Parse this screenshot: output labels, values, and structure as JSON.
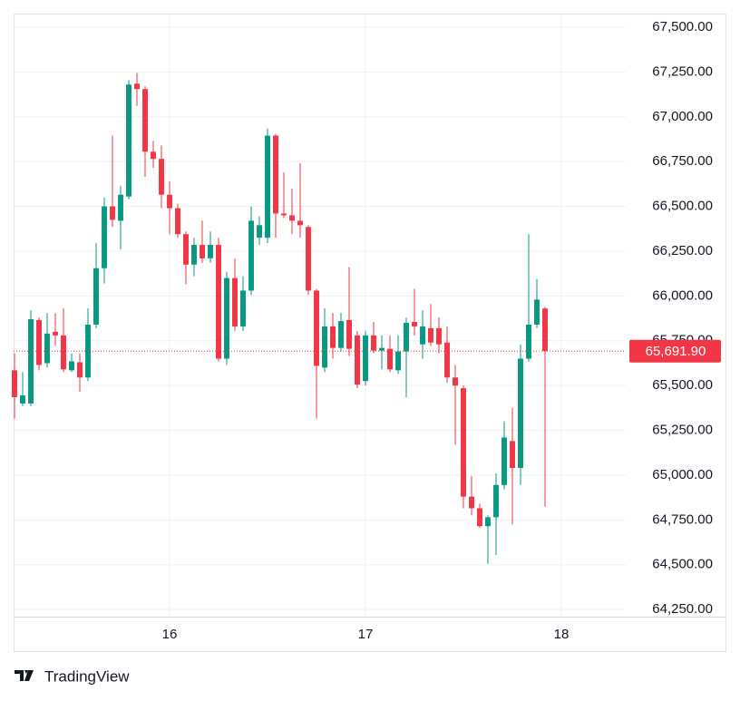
{
  "chart_data": {
    "type": "candlestick",
    "x": [
      15.2083,
      15.25,
      15.2917,
      15.3333,
      15.375,
      15.4167,
      15.4583,
      15.5,
      15.5417,
      15.5833,
      15.625,
      15.6667,
      15.7083,
      15.75,
      15.7917,
      15.8333,
      15.875,
      15.9167,
      15.9583,
      16,
      16.0417,
      16.0833,
      16.125,
      16.1667,
      16.2083,
      16.25,
      16.2917,
      16.3333,
      16.375,
      16.4167,
      16.4583,
      16.5,
      16.5417,
      16.5833,
      16.625,
      16.6667,
      16.7083,
      16.75,
      16.7917,
      16.8333,
      16.875,
      16.9167,
      16.9583,
      17,
      17.0417,
      17.0833,
      17.125,
      17.1667,
      17.2083,
      17.25,
      17.2917,
      17.3333,
      17.375,
      17.4167,
      17.4583,
      17.5,
      17.5417,
      17.5833,
      17.625,
      17.6667,
      17.7083,
      17.75,
      17.7917,
      17.8333,
      17.875,
      17.9167
    ],
    "open": [
      65585,
      65400,
      65400,
      65865,
      65625,
      65800,
      65780,
      65585,
      65630,
      65545,
      65840,
      66155,
      66500,
      66420,
      66555,
      67185,
      67155,
      66805,
      66765,
      66565,
      66490,
      66345,
      66175,
      66285,
      66210,
      66285,
      65650,
      66100,
      65830,
      66030,
      66325,
      66325,
      66895,
      66460,
      66450,
      66420,
      66385,
      66030,
      65600,
      65830,
      65710,
      65865,
      65780,
      65525,
      65780,
      65695,
      65705,
      65585,
      65690,
      65855,
      65730,
      65820,
      65820,
      65740,
      65545,
      65485,
      64880,
      64815,
      64715,
      64765,
      64945,
      65190,
      65040,
      65650,
      65840,
      65930
    ],
    "high": [
      65680,
      65575,
      65920,
      65880,
      65905,
      65905,
      65930,
      65680,
      65680,
      65930,
      66295,
      66550,
      66895,
      66615,
      67205,
      67245,
      67170,
      66865,
      66840,
      66640,
      66515,
      66360,
      66325,
      66420,
      66360,
      66325,
      66135,
      66210,
      66110,
      66500,
      66445,
      66935,
      66905,
      66690,
      66600,
      66740,
      66395,
      66040,
      65930,
      65905,
      65905,
      66160,
      65805,
      65805,
      65855,
      65780,
      65780,
      65780,
      65880,
      66040,
      65920,
      65955,
      65880,
      65830,
      65615,
      65500,
      64995,
      64840,
      64775,
      65010,
      65300,
      65375,
      65730,
      66345,
      66095,
      65940
    ],
    "low": [
      65315,
      65385,
      65385,
      65585,
      65600,
      65720,
      65575,
      65575,
      65465,
      65525,
      65820,
      66070,
      66385,
      66260,
      66540,
      67060,
      66665,
      66715,
      66490,
      66345,
      66325,
      66065,
      66110,
      66185,
      66185,
      65635,
      65615,
      65805,
      65805,
      66005,
      66285,
      66295,
      66325,
      66435,
      66345,
      66325,
      66005,
      65315,
      65575,
      65650,
      65690,
      65665,
      65485,
      65500,
      65680,
      65590,
      65575,
      65565,
      65435,
      65780,
      65650,
      65720,
      65680,
      65515,
      65170,
      64815,
      64775,
      64705,
      64505,
      64555,
      64920,
      64725,
      64945,
      65635,
      65820,
      64825
    ],
    "close": [
      65435,
      65445,
      65870,
      65615,
      65790,
      65780,
      65590,
      65635,
      65545,
      65840,
      66155,
      66500,
      66425,
      66565,
      67180,
      67155,
      66805,
      66765,
      66565,
      66490,
      66345,
      66175,
      66285,
      66210,
      66285,
      65650,
      66100,
      65830,
      66030,
      66420,
      66395,
      66895,
      66460,
      66450,
      66420,
      66395,
      66030,
      65610,
      65830,
      65710,
      65860,
      65705,
      65505,
      65780,
      65695,
      65710,
      65590,
      65690,
      65850,
      65830,
      65830,
      65740,
      65730,
      65545,
      65500,
      64880,
      64815,
      64715,
      64765,
      64945,
      65210,
      65040,
      65650,
      65840,
      65980,
      65691.9
    ],
    "up_color": "#089981",
    "down_color": "#f23645",
    "xlim": [
      15.2037,
      18.3287
    ],
    "xticks": [
      16,
      17,
      18
    ],
    "ylim": [
      64210,
      67576
    ],
    "yticks": [
      {
        "value": 64250,
        "label": "64,250.00"
      },
      {
        "value": 64500,
        "label": "64,500.00"
      },
      {
        "value": 64750,
        "label": "64,750.00"
      },
      {
        "value": 65000,
        "label": "65,000.00"
      },
      {
        "value": 65250,
        "label": "65,250.00"
      },
      {
        "value": 65500,
        "label": "65,500.00"
      },
      {
        "value": 65750,
        "label": "65,750.00"
      },
      {
        "value": 66000,
        "label": "66,000.00"
      },
      {
        "value": 66250,
        "label": "66,250.00"
      },
      {
        "value": 66500,
        "label": "66,500.00"
      },
      {
        "value": 66750,
        "label": "66,750.00"
      },
      {
        "value": 67000,
        "label": "67,000.00"
      },
      {
        "value": 67250,
        "label": "67,250.00"
      },
      {
        "value": 67500,
        "label": "67,500.00"
      }
    ],
    "last_price": {
      "value": 65691.9,
      "label": "65,691.90"
    },
    "grid": true
  },
  "logo": "TradingView"
}
